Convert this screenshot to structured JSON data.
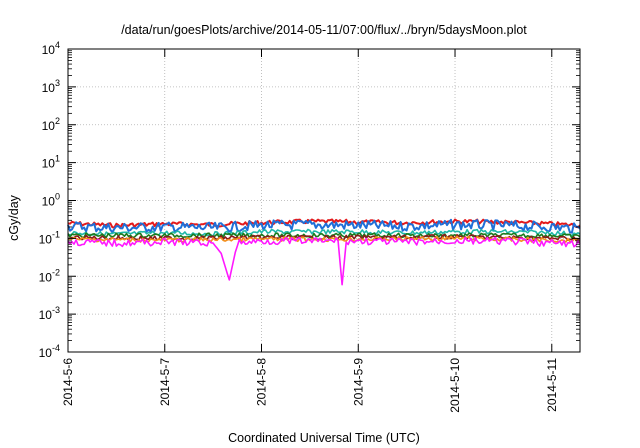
{
  "chart_data": {
    "type": "line",
    "title": "/data/run/goesPlots/archive/2014-05-11/07:00/flux/../bryn/5daysMoon.plot",
    "xlabel": "Coordinated Universal Time (UTC)",
    "ylabel": "cGy/day",
    "yscale": "log",
    "ylim": [
      0.0001,
      10000
    ],
    "xlim": [
      "2014-05-06T00:00",
      "2014-05-11T07:00"
    ],
    "grid": true,
    "legend": "none",
    "y_ticks": [
      {
        "value": 0.0001,
        "base": "10",
        "exp": "-4"
      },
      {
        "value": 0.001,
        "base": "10",
        "exp": "-3"
      },
      {
        "value": 0.01,
        "base": "10",
        "exp": "-2"
      },
      {
        "value": 0.1,
        "base": "10",
        "exp": "-1"
      },
      {
        "value": 1,
        "base": "10",
        "exp": "0"
      },
      {
        "value": 10,
        "base": "10",
        "exp": "1"
      },
      {
        "value": 100,
        "base": "10",
        "exp": "2"
      },
      {
        "value": 1000,
        "base": "10",
        "exp": "3"
      },
      {
        "value": 10000,
        "base": "10",
        "exp": "4"
      }
    ],
    "x_ticks": [
      {
        "value": "2014-05-06T00:00",
        "label": "2014-5-6"
      },
      {
        "value": "2014-05-07T00:00",
        "label": "2014-5-7"
      },
      {
        "value": "2014-05-08T00:00",
        "label": "2014-5-8"
      },
      {
        "value": "2014-05-09T00:00",
        "label": "2014-5-9"
      },
      {
        "value": "2014-05-10T00:00",
        "label": "2014-5-10"
      },
      {
        "value": "2014-05-11T00:00",
        "label": "2014-5-11"
      }
    ],
    "series": [
      {
        "color": "#e41a1c",
        "level": 0.24,
        "points": [
          [
            "2014-05-06T00:00",
            0.25
          ],
          [
            "2014-05-06T12:00",
            0.22
          ],
          [
            "2014-05-07T00:00",
            0.24
          ],
          [
            "2014-05-07T12:00",
            0.23
          ],
          [
            "2014-05-08T00:00",
            0.26
          ],
          [
            "2014-05-08T12:00",
            0.28
          ],
          [
            "2014-05-09T00:00",
            0.27
          ],
          [
            "2014-05-09T12:00",
            0.26
          ],
          [
            "2014-05-10T00:00",
            0.28
          ],
          [
            "2014-05-10T12:00",
            0.27
          ],
          [
            "2014-05-11T00:00",
            0.24
          ],
          [
            "2014-05-11T07:00",
            0.22
          ]
        ]
      },
      {
        "color": "#1f6fd8",
        "level": 0.2,
        "points": [
          [
            "2014-05-06T00:00",
            0.21
          ],
          [
            "2014-05-06T12:00",
            0.19
          ],
          [
            "2014-05-07T00:00",
            0.2
          ],
          [
            "2014-05-07T12:00",
            0.19
          ],
          [
            "2014-05-08T00:00",
            0.22
          ],
          [
            "2014-05-08T12:00",
            0.23
          ],
          [
            "2014-05-09T00:00",
            0.22
          ],
          [
            "2014-05-09T12:00",
            0.21
          ],
          [
            "2014-05-10T00:00",
            0.23
          ],
          [
            "2014-05-10T12:00",
            0.22
          ],
          [
            "2014-05-11T00:00",
            0.2
          ],
          [
            "2014-05-11T07:00",
            0.18
          ]
        ]
      },
      {
        "color": "#20b8a8",
        "level": 0.14,
        "points": [
          [
            "2014-05-06T00:00",
            0.14
          ],
          [
            "2014-05-06T12:00",
            0.13
          ],
          [
            "2014-05-07T00:00",
            0.14
          ],
          [
            "2014-05-07T12:00",
            0.13
          ],
          [
            "2014-05-08T00:00",
            0.15
          ],
          [
            "2014-05-08T12:00",
            0.15
          ],
          [
            "2014-05-09T00:00",
            0.15
          ],
          [
            "2014-05-09T12:00",
            0.14
          ],
          [
            "2014-05-10T00:00",
            0.15
          ],
          [
            "2014-05-10T12:00",
            0.15
          ],
          [
            "2014-05-11T00:00",
            0.14
          ],
          [
            "2014-05-11T07:00",
            0.13
          ]
        ]
      },
      {
        "color": "#1b7a1b",
        "level": 0.12,
        "points": [
          [
            "2014-05-06T00:00",
            0.12
          ],
          [
            "2014-05-07T00:00",
            0.12
          ],
          [
            "2014-05-08T00:00",
            0.12
          ],
          [
            "2014-05-09T00:00",
            0.12
          ],
          [
            "2014-05-10T00:00",
            0.12
          ],
          [
            "2014-05-11T00:00",
            0.12
          ],
          [
            "2014-05-11T07:00",
            0.11
          ]
        ]
      },
      {
        "color": "#8b1a1a",
        "level": 0.105,
        "points": [
          [
            "2014-05-06T00:00",
            0.105
          ],
          [
            "2014-05-07T00:00",
            0.1
          ],
          [
            "2014-05-08T00:00",
            0.105
          ],
          [
            "2014-05-09T00:00",
            0.105
          ],
          [
            "2014-05-10T00:00",
            0.11
          ],
          [
            "2014-05-11T00:00",
            0.1
          ],
          [
            "2014-05-11T07:00",
            0.1
          ]
        ]
      },
      {
        "color": "#f28e1c",
        "level": 0.095,
        "points": [
          [
            "2014-05-06T00:00",
            0.095
          ],
          [
            "2014-05-07T00:00",
            0.09
          ],
          [
            "2014-05-08T00:00",
            0.095
          ],
          [
            "2014-05-09T00:00",
            0.095
          ],
          [
            "2014-05-10T00:00",
            0.1
          ],
          [
            "2014-05-11T00:00",
            0.09
          ],
          [
            "2014-05-11T07:00",
            0.09
          ]
        ]
      },
      {
        "color": "#ff18ff",
        "level": 0.08,
        "points": [
          [
            "2014-05-06T00:00",
            0.08
          ],
          [
            "2014-05-06T12:00",
            0.075
          ],
          [
            "2014-05-07T00:00",
            0.08
          ],
          [
            "2014-05-07T12:00",
            0.075
          ],
          [
            "2014-05-07T14:00",
            0.04
          ],
          [
            "2014-05-07T16:00",
            0.008
          ],
          [
            "2014-05-07T18:00",
            0.075
          ],
          [
            "2014-05-08T00:00",
            0.085
          ],
          [
            "2014-05-08T19:00",
            0.085
          ],
          [
            "2014-05-08T20:00",
            0.006
          ],
          [
            "2014-05-08T21:00",
            0.085
          ],
          [
            "2014-05-09T12:00",
            0.08
          ],
          [
            "2014-05-10T00:00",
            0.085
          ],
          [
            "2014-05-10T12:00",
            0.085
          ],
          [
            "2014-05-11T00:00",
            0.075
          ],
          [
            "2014-05-11T07:00",
            0.07
          ]
        ]
      }
    ]
  }
}
